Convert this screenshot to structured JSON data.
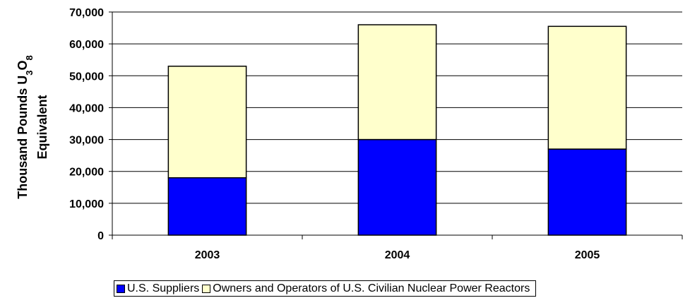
{
  "chart_data": {
    "type": "bar",
    "stacked": true,
    "categories": [
      "2003",
      "2004",
      "2005"
    ],
    "series": [
      {
        "name": "U.S. Suppliers",
        "color": "#0000FF",
        "values": [
          18000,
          30000,
          27000
        ]
      },
      {
        "name": "Owners and Operators of U.S. Civilian Nuclear Power Reactors",
        "color": "#FFFFCC",
        "values": [
          35000,
          36000,
          38500
        ]
      }
    ],
    "ylabel_line1": "Thousand Pounds U",
    "ylabel_sub1": "3",
    "ylabel_mid": "O",
    "ylabel_sub2": "8",
    "ylabel_line2": "Equivalent",
    "ylim": [
      0,
      70000
    ],
    "yticks": [
      "0",
      "10,000",
      "20,000",
      "30,000",
      "40,000",
      "50,000",
      "60,000",
      "70,000"
    ],
    "grid": true,
    "legend_position": "bottom"
  }
}
